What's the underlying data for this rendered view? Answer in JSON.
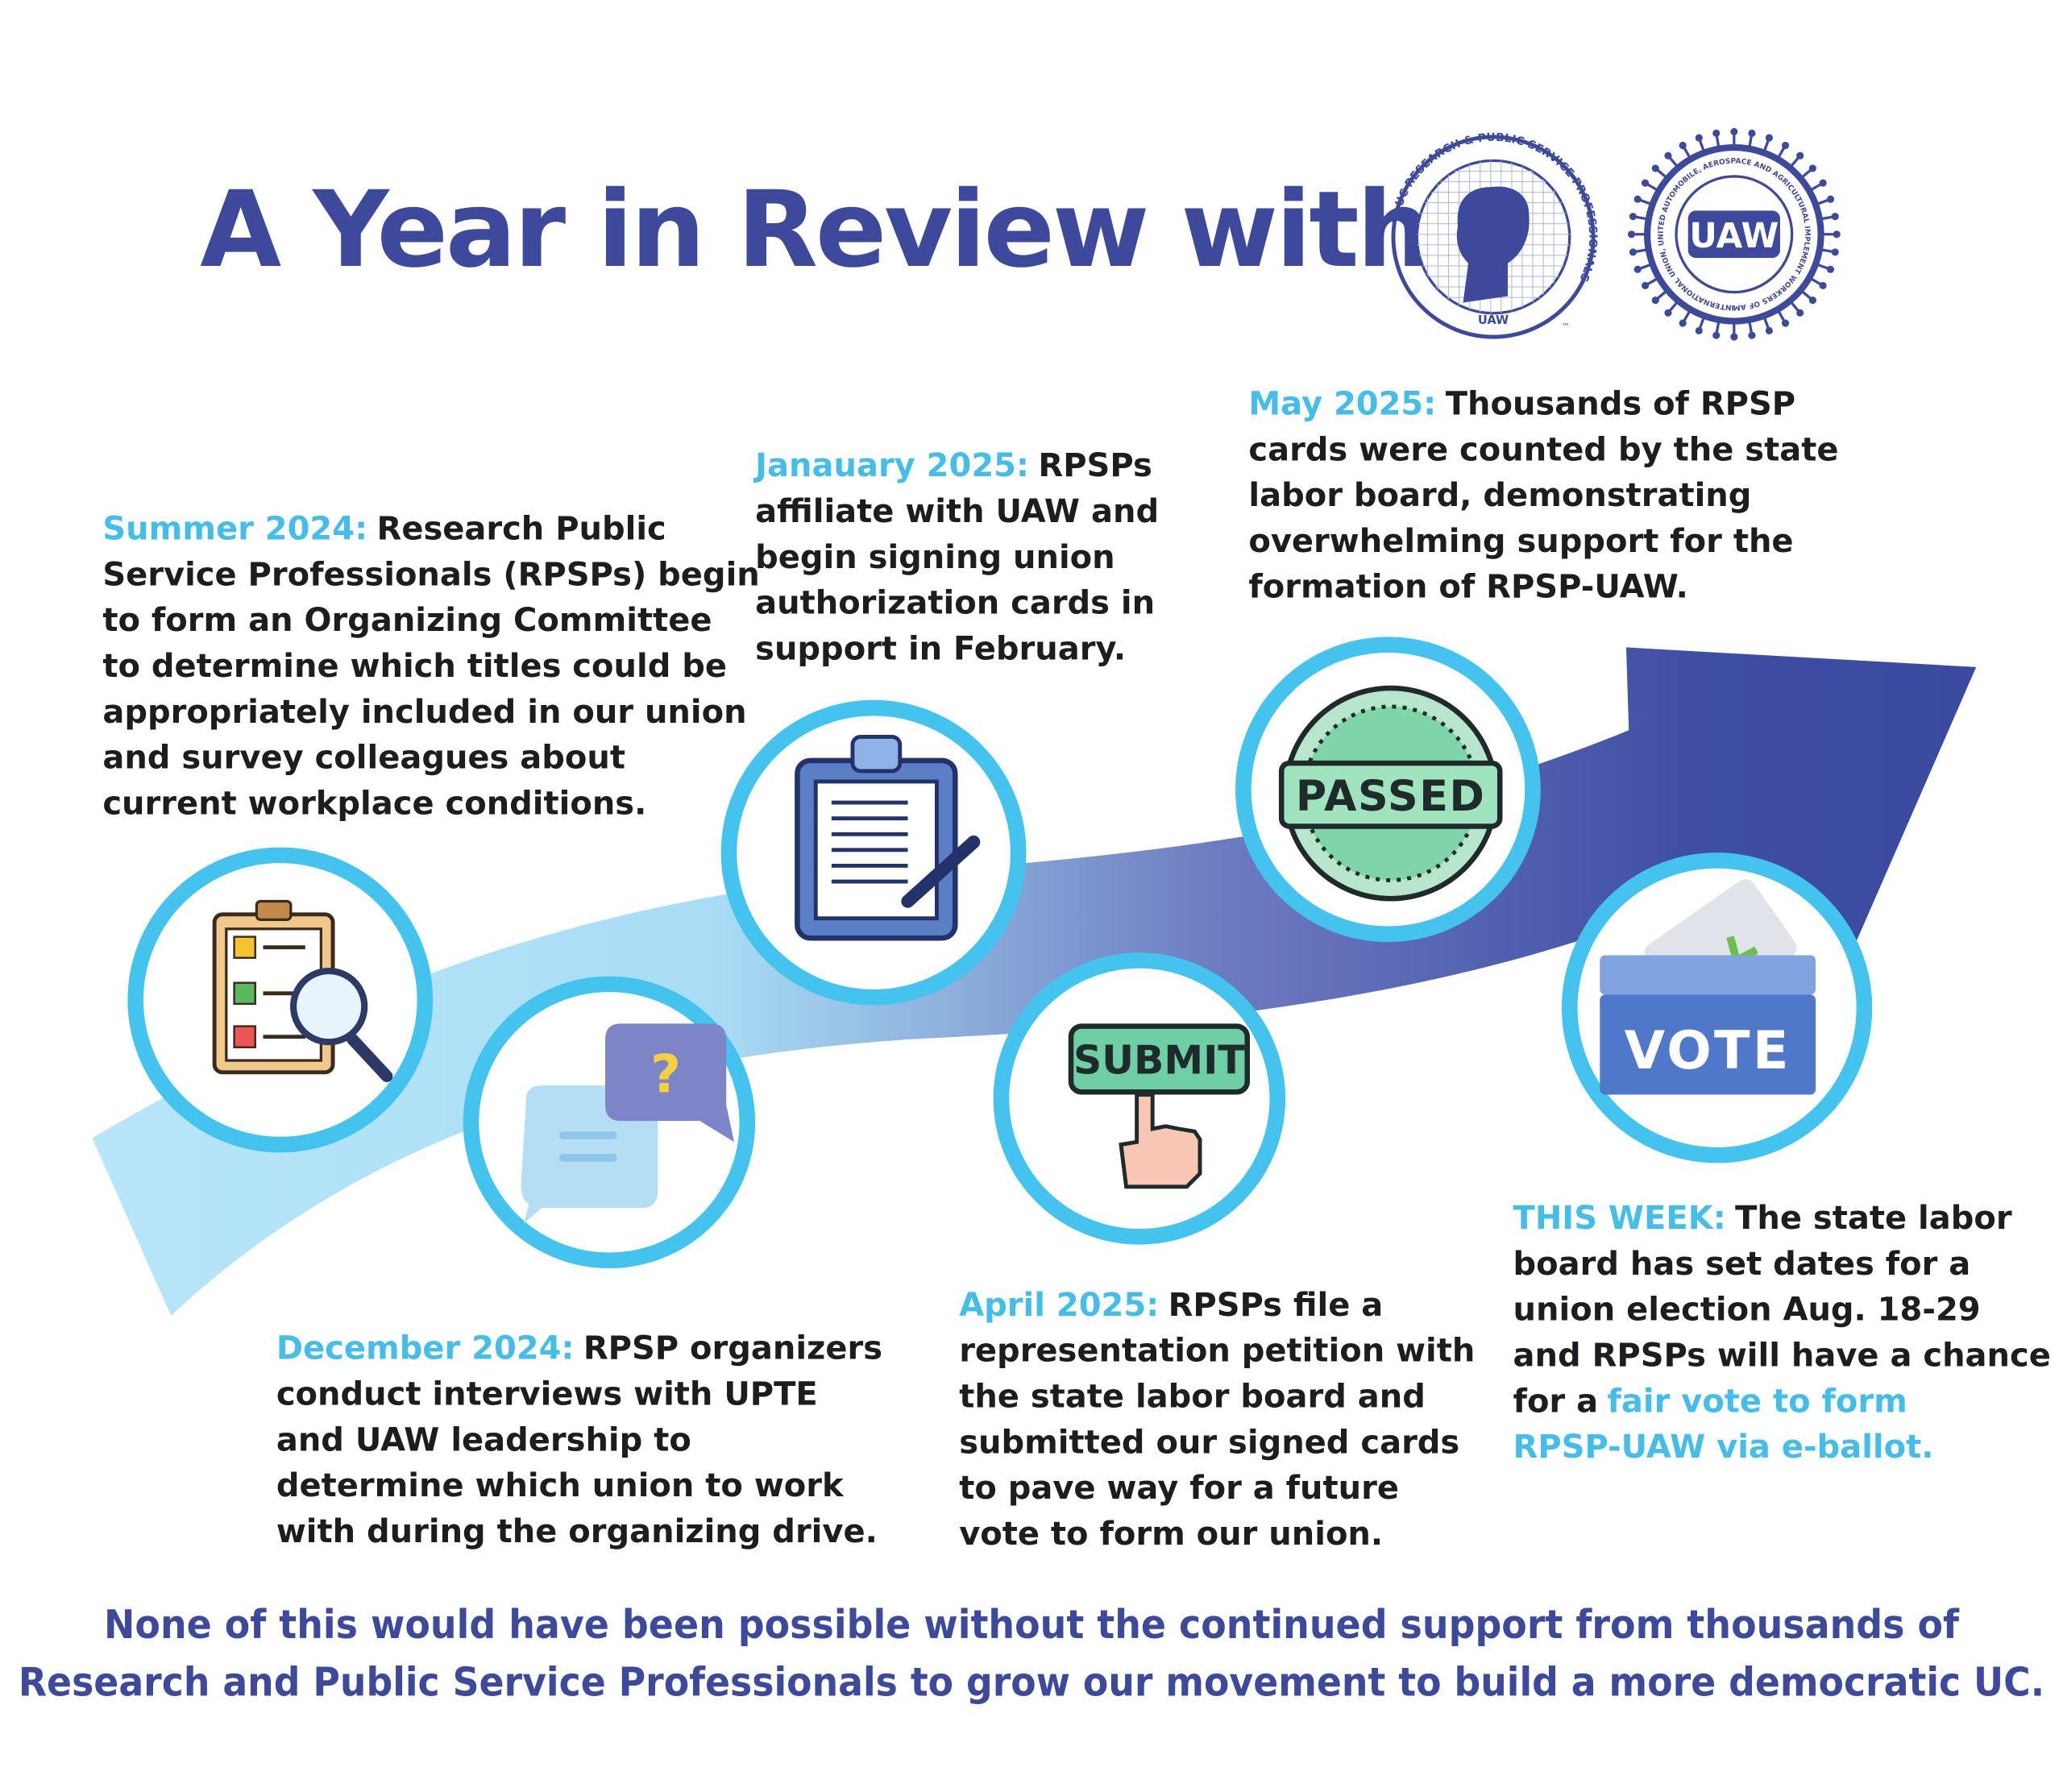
{
  "header": {
    "title": "A Year in Review with",
    "logo_rpsp_ring": "UC RESEARCH & PUBLIC SERVICE PROFESSIONALS",
    "logo_rpsp_bottom": "UAW",
    "logo_rpsp_mark": "™",
    "logo_uaw_center": "UAW",
    "logo_uaw_ring": "INTERNATIONAL UNION, UNITED AUTOMOBILE, AEROSPACE AND AGRICULTURAL IMPLEMENT WORKERS OF AMERICA"
  },
  "icons": {
    "question": "?",
    "passed": "PASSED",
    "submit": "SUBMIT",
    "vote": "VOTE"
  },
  "milestones": [
    {
      "date": "Summer 2024:",
      "lines": [
        "Research Public",
        "Service Professionals (RPSPs) begin",
        "to form an Organizing Committee",
        "to determine which titles could be",
        "appropriately included in our union",
        "and survey colleagues about",
        "current workplace conditions."
      ]
    },
    {
      "date": "Janauary 2025:",
      "lines": [
        "RPSPs",
        "affiliate with UAW and",
        "begin signing union",
        "authorization cards in",
        "support in February."
      ]
    },
    {
      "date": "May 2025:",
      "lines": [
        "Thousands of RPSP",
        "cards were counted by the state",
        "labor board, demonstrating",
        "overwhelming support for the",
        "formation of RPSP-UAW."
      ]
    },
    {
      "date": "December 2024:",
      "lines": [
        "RPSP organizers",
        "conduct interviews with UPTE",
        "and UAW leadership to",
        "determine which union to work",
        "with during the organizing drive."
      ]
    },
    {
      "date": "April 2025:",
      "lines": [
        "RPSPs file a",
        "representation petition with",
        "the state labor board and",
        "submitted our signed cards",
        "to pave way for a future",
        "vote to form our union."
      ]
    },
    {
      "date": "THIS WEEK:",
      "lines": [
        "The state labor",
        "board has set dates for a",
        "union election Aug. 18-29",
        "and RPSPs will have a chance",
        "for a"
      ],
      "highlight_lines": [
        "fair vote to form",
        "RPSP-UAW via e-ballot."
      ]
    }
  ],
  "footer": {
    "lines": [
      "None of this would have been possible without the continued support from thousands of",
      "Research and Public Service Professionals to grow our movement to build a more democratic UC."
    ]
  }
}
